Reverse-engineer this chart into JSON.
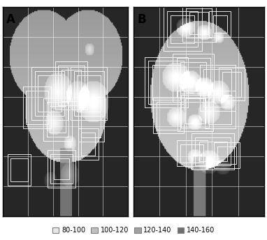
{
  "title_A": "A",
  "title_B": "B",
  "background_color": "#ffffff",
  "panel_bg": "#1a1a1a",
  "grid_color": "white",
  "contour_color": "white",
  "legend_labels": [
    "80-100",
    "100-120",
    "120-140",
    "140-160"
  ],
  "legend_colors": [
    "#e8e8e8",
    "#c0c0c0",
    "#a0a0a0",
    "#707070"
  ],
  "figsize": [
    3.82,
    3.44
  ],
  "dpi": 100,
  "contours_A": [
    [
      45,
      65,
      30,
      35,
      3
    ],
    [
      75,
      60,
      25,
      30,
      3
    ],
    [
      95,
      65,
      30,
      35,
      3
    ],
    [
      30,
      80,
      28,
      32,
      2
    ],
    [
      60,
      95,
      20,
      25,
      3
    ],
    [
      100,
      90,
      25,
      35,
      2
    ],
    [
      10,
      145,
      22,
      22,
      2
    ],
    [
      65,
      145,
      20,
      20,
      3
    ],
    [
      100,
      120,
      18,
      22,
      2
    ]
  ],
  "contours_B": [
    [
      40,
      8,
      25,
      28,
      3
    ],
    [
      60,
      5,
      20,
      22,
      3
    ],
    [
      85,
      8,
      15,
      18,
      2
    ],
    [
      20,
      58,
      30,
      35,
      3
    ],
    [
      50,
      55,
      28,
      32,
      3
    ],
    [
      75,
      62,
      30,
      38,
      2
    ],
    [
      95,
      65,
      20,
      25,
      2
    ],
    [
      25,
      95,
      25,
      28,
      2
    ],
    [
      55,
      92,
      22,
      25,
      3
    ],
    [
      80,
      88,
      25,
      30,
      2
    ],
    [
      50,
      138,
      25,
      18,
      2
    ],
    [
      70,
      135,
      30,
      20,
      3
    ],
    [
      90,
      140,
      20,
      18,
      2
    ]
  ]
}
